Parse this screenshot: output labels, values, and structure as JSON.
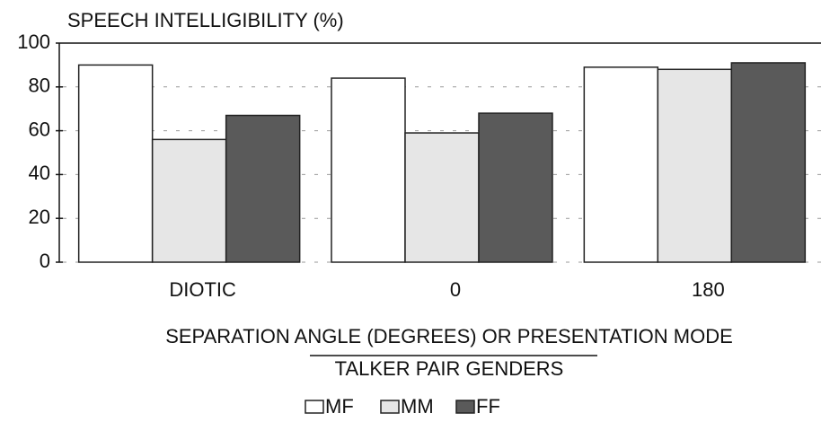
{
  "chart_data": {
    "type": "bar",
    "title": "SPEECH INTELLIGIBILITY (%)",
    "x_label": "SEPARATION ANGLE (DEGREES) OR PRESENTATION MODE",
    "legend_title": "TALKER PAIR GENDERS",
    "categories": [
      "DIOTIC",
      "0",
      "180"
    ],
    "series": [
      {
        "name": "MF",
        "color": "#ffffff",
        "values": [
          90,
          84,
          89
        ]
      },
      {
        "name": "MM",
        "color": "#e6e6e6",
        "values": [
          56,
          59,
          88
        ]
      },
      {
        "name": "FF",
        "color": "#5a5a5a",
        "values": [
          67,
          68,
          91
        ]
      }
    ],
    "ylim": [
      0,
      100
    ],
    "yticks": [
      0,
      20,
      40,
      60,
      80,
      100
    ],
    "grid": true,
    "legend": "bottom"
  }
}
